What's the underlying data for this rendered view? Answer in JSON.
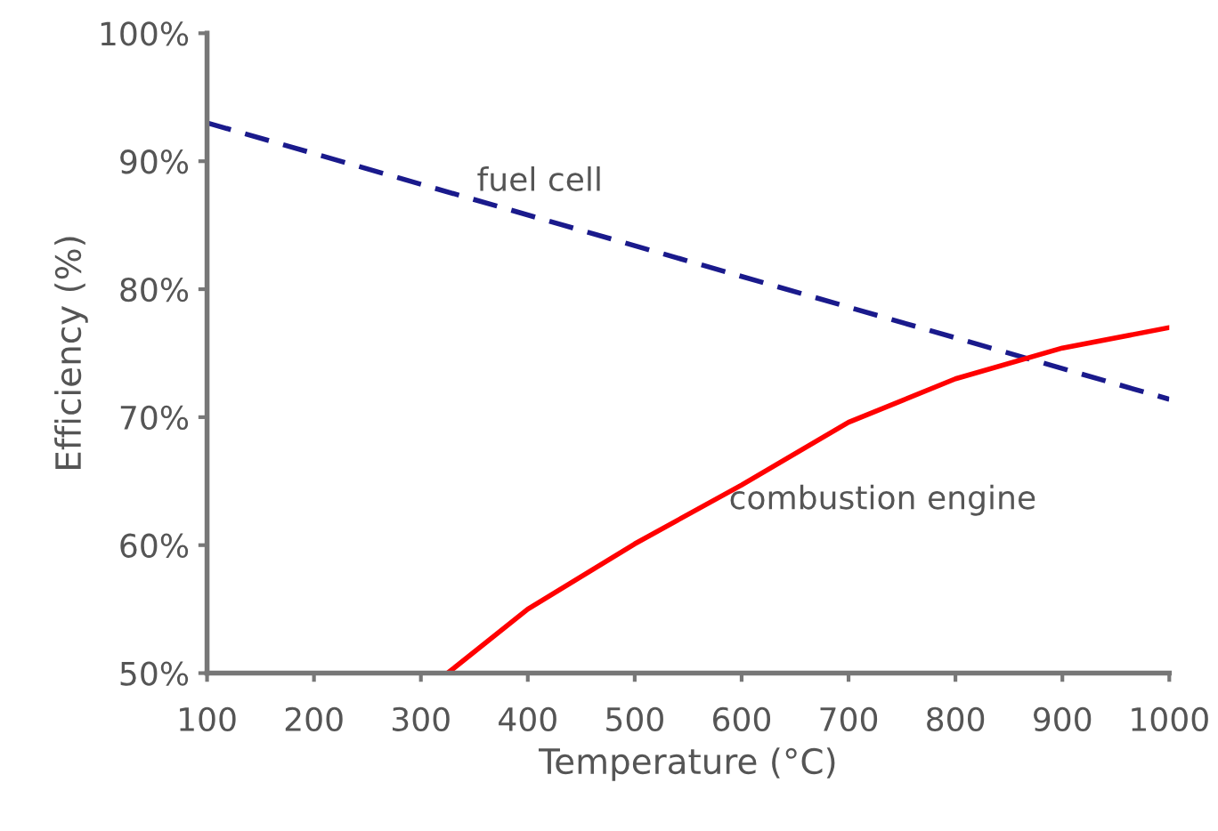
{
  "chart_data": {
    "type": "line",
    "xlabel": "Temperature (°C)",
    "ylabel": "Efficiency (%)",
    "xlim": [
      100,
      1000
    ],
    "ylim": [
      50,
      100
    ],
    "xticks": [
      100,
      200,
      300,
      400,
      500,
      600,
      700,
      800,
      900,
      1000
    ],
    "yticks": [
      {
        "value": 50,
        "label": "50%"
      },
      {
        "value": 60,
        "label": "60%"
      },
      {
        "value": 70,
        "label": "70%"
      },
      {
        "value": 80,
        "label": "80%"
      },
      {
        "value": 90,
        "label": "90%"
      },
      {
        "value": 100,
        "label": "100%"
      }
    ],
    "grid": false,
    "legend": false,
    "marker": "none",
    "series": [
      {
        "name": "fuel cell",
        "color": "#1a1a8c",
        "line_style": "dashed",
        "x": [
          100,
          1000
        ],
        "values": [
          93,
          71.4
        ]
      },
      {
        "name": "combustion engine",
        "color": "#ff0000",
        "line_style": "solid",
        "x": [
          325,
          400,
          500,
          600,
          700,
          800,
          900,
          1000
        ],
        "values": [
          50,
          55,
          60.1,
          64.7,
          69.6,
          73,
          75.4,
          77
        ]
      }
    ]
  }
}
